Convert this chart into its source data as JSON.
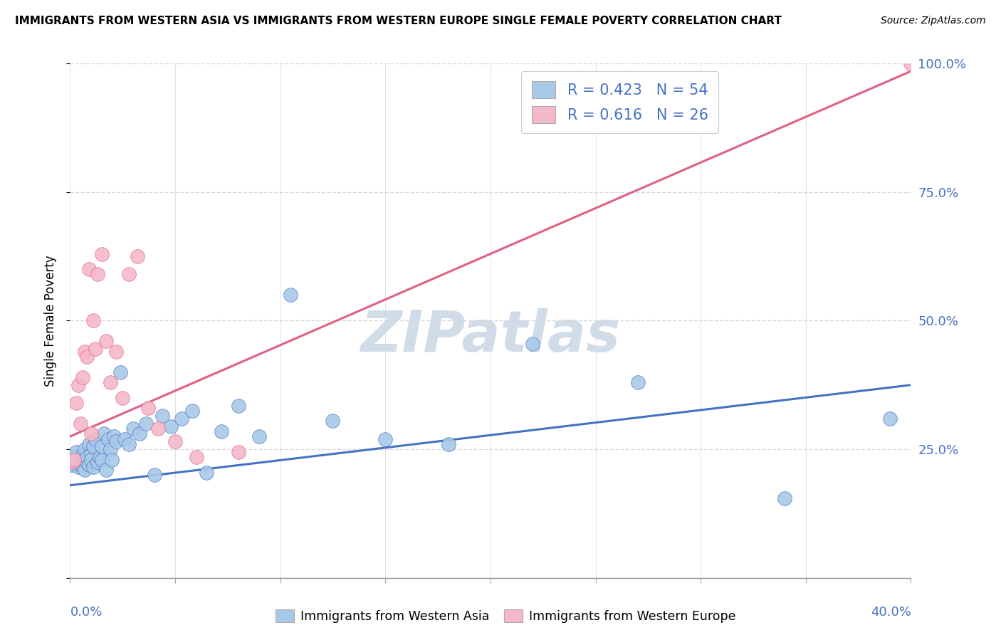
{
  "title": "IMMIGRANTS FROM WESTERN ASIA VS IMMIGRANTS FROM WESTERN EUROPE SINGLE FEMALE POVERTY CORRELATION CHART",
  "source": "Source: ZipAtlas.com",
  "ylabel": "Single Female Poverty",
  "legend_label_blue": "Immigrants from Western Asia",
  "legend_label_pink": "Immigrants from Western Europe",
  "R_blue": 0.423,
  "N_blue": 54,
  "R_pink": 0.616,
  "N_pink": 26,
  "blue_color": "#a8c8e8",
  "blue_line_color": "#4472c4",
  "pink_color": "#f4b8c8",
  "pink_line_color": "#e06080",
  "text_color": "#4472c4",
  "watermark_color": "#d0dce8",
  "blue_x": [
    0.001,
    0.002,
    0.003,
    0.003,
    0.004,
    0.005,
    0.005,
    0.006,
    0.006,
    0.007,
    0.007,
    0.008,
    0.008,
    0.009,
    0.009,
    0.01,
    0.01,
    0.011,
    0.011,
    0.012,
    0.013,
    0.014,
    0.015,
    0.015,
    0.016,
    0.017,
    0.018,
    0.019,
    0.02,
    0.021,
    0.022,
    0.024,
    0.026,
    0.028,
    0.03,
    0.033,
    0.036,
    0.04,
    0.044,
    0.048,
    0.053,
    0.058,
    0.065,
    0.072,
    0.08,
    0.09,
    0.105,
    0.125,
    0.15,
    0.18,
    0.22,
    0.27,
    0.34,
    0.39
  ],
  "blue_y": [
    0.22,
    0.235,
    0.225,
    0.245,
    0.215,
    0.23,
    0.22,
    0.24,
    0.215,
    0.25,
    0.21,
    0.225,
    0.235,
    0.26,
    0.22,
    0.24,
    0.23,
    0.255,
    0.215,
    0.27,
    0.225,
    0.235,
    0.255,
    0.23,
    0.28,
    0.21,
    0.27,
    0.25,
    0.23,
    0.275,
    0.265,
    0.4,
    0.27,
    0.26,
    0.29,
    0.28,
    0.3,
    0.2,
    0.315,
    0.295,
    0.31,
    0.325,
    0.205,
    0.285,
    0.335,
    0.275,
    0.55,
    0.305,
    0.27,
    0.26,
    0.455,
    0.38,
    0.155,
    0.31
  ],
  "pink_x": [
    0.001,
    0.002,
    0.003,
    0.004,
    0.005,
    0.006,
    0.007,
    0.008,
    0.009,
    0.01,
    0.011,
    0.012,
    0.013,
    0.015,
    0.017,
    0.019,
    0.022,
    0.025,
    0.028,
    0.032,
    0.037,
    0.042,
    0.05,
    0.06,
    0.08,
    0.4
  ],
  "pink_y": [
    0.225,
    0.23,
    0.34,
    0.375,
    0.3,
    0.39,
    0.44,
    0.43,
    0.6,
    0.28,
    0.5,
    0.445,
    0.59,
    0.63,
    0.46,
    0.38,
    0.44,
    0.35,
    0.59,
    0.625,
    0.33,
    0.29,
    0.265,
    0.235,
    0.245,
    1.0
  ],
  "blue_trend_x": [
    0.0,
    0.4
  ],
  "blue_trend_y": [
    0.18,
    0.375
  ],
  "pink_trend_x": [
    0.0,
    0.4
  ],
  "pink_trend_y": [
    0.275,
    0.985
  ],
  "xlim": [
    0.0,
    0.4
  ],
  "ylim": [
    0.0,
    1.0
  ],
  "yticks": [
    0.0,
    0.25,
    0.5,
    0.75,
    1.0
  ],
  "ytick_labels": [
    "",
    "25.0%",
    "50.0%",
    "75.0%",
    "100.0%"
  ],
  "xticks": [
    0.0,
    0.05,
    0.1,
    0.15,
    0.2,
    0.25,
    0.3,
    0.35,
    0.4
  ],
  "grid_color": "#d8d8d8",
  "background_color": "#ffffff"
}
